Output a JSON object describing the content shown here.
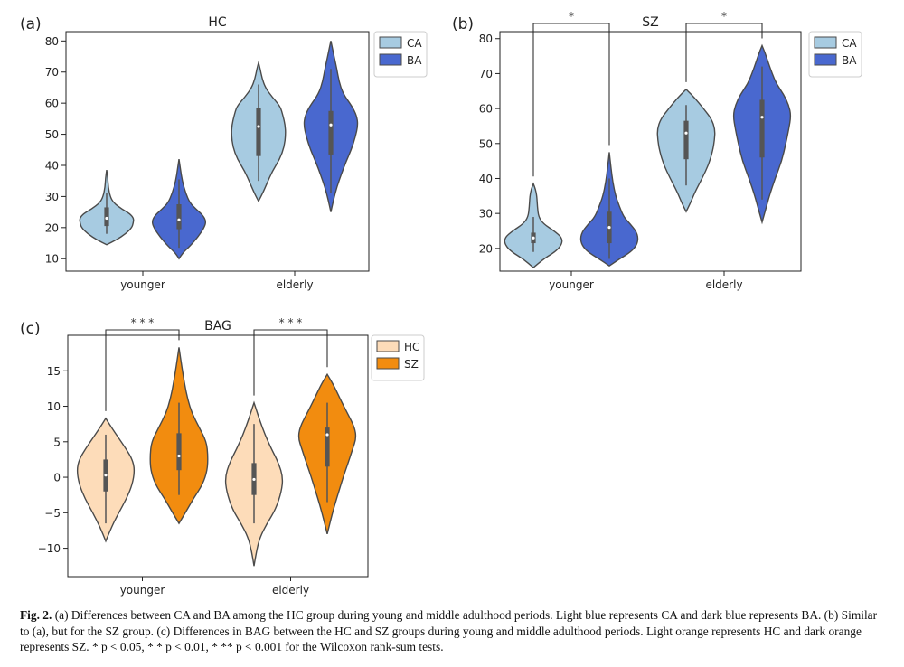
{
  "chart_data": [
    {
      "type": "violin",
      "panel_label": "(a)",
      "title": "HC",
      "categories": [
        "younger",
        "elderly"
      ],
      "ylim": [
        6,
        83
      ],
      "yticks": [
        10,
        20,
        30,
        40,
        50,
        60,
        70,
        80
      ],
      "legend_position": "top-right-outside",
      "series": [
        {
          "name": "CA",
          "color": "#A7CBE1",
          "stats": [
            {
              "min": 14.5,
              "max": 38.5,
              "whisker_low": 18,
              "whisker_high": 31,
              "q1": 20.5,
              "q3": 26.5,
              "median": 23,
              "profile": [
                [
                  14.5,
                  0.0
                ],
                [
                  16,
                  0.35
                ],
                [
                  18,
                  0.7
                ],
                [
                  20,
                  0.93
                ],
                [
                  21.5,
                  0.98
                ],
                [
                  23,
                  1.0
                ],
                [
                  24.5,
                  0.85
                ],
                [
                  26,
                  0.55
                ],
                [
                  28,
                  0.25
                ],
                [
                  30,
                  0.13
                ],
                [
                  33,
                  0.06
                ],
                [
                  36,
                  0.04
                ],
                [
                  38.5,
                  0.0
                ]
              ]
            },
            {
              "min": 28.5,
              "max": 73,
              "whisker_low": 35,
              "whisker_high": 66,
              "q1": 43,
              "q3": 58.5,
              "median": 52.5,
              "profile": [
                [
                  28.5,
                  0.0
                ],
                [
                  31,
                  0.15
                ],
                [
                  34,
                  0.3
                ],
                [
                  38,
                  0.5
                ],
                [
                  42,
                  0.78
                ],
                [
                  46,
                  0.95
                ],
                [
                  50,
                  1.0
                ],
                [
                  53,
                  0.98
                ],
                [
                  56,
                  0.9
                ],
                [
                  59,
                  0.8
                ],
                [
                  62,
                  0.5
                ],
                [
                  65,
                  0.25
                ],
                [
                  68,
                  0.13
                ],
                [
                  71,
                  0.06
                ],
                [
                  73,
                  0.0
                ]
              ]
            }
          ]
        },
        {
          "name": "BA",
          "color": "#4968CF",
          "stats": [
            {
              "min": 10,
              "max": 42,
              "whisker_low": 13.5,
              "whisker_high": 35.5,
              "q1": 19.5,
              "q3": 27.5,
              "median": 22.5,
              "profile": [
                [
                  10,
                  0.0
                ],
                [
                  12,
                  0.15
                ],
                [
                  14,
                  0.4
                ],
                [
                  17,
                  0.7
                ],
                [
                  20,
                  0.93
                ],
                [
                  22,
                  1.0
                ],
                [
                  24,
                  0.88
                ],
                [
                  26,
                  0.62
                ],
                [
                  28,
                  0.4
                ],
                [
                  31,
                  0.25
                ],
                [
                  35,
                  0.12
                ],
                [
                  39,
                  0.05
                ],
                [
                  42,
                  0.0
                ]
              ]
            },
            {
              "min": 25,
              "max": 80,
              "whisker_low": 31,
              "whisker_high": 71,
              "q1": 43.5,
              "q3": 57.5,
              "median": 53,
              "profile": [
                [
                  25,
                  0.0
                ],
                [
                  29,
                  0.1
                ],
                [
                  33,
                  0.22
                ],
                [
                  37,
                  0.38
                ],
                [
                  41,
                  0.55
                ],
                [
                  45,
                  0.75
                ],
                [
                  49,
                  0.9
                ],
                [
                  53,
                  1.0
                ],
                [
                  56,
                  0.95
                ],
                [
                  59,
                  0.78
                ],
                [
                  63,
                  0.45
                ],
                [
                  67,
                  0.3
                ],
                [
                  71,
                  0.22
                ],
                [
                  75,
                  0.12
                ],
                [
                  78,
                  0.05
                ],
                [
                  80,
                  0.0
                ]
              ]
            }
          ]
        }
      ],
      "significance": []
    },
    {
      "type": "violin",
      "panel_label": "(b)",
      "title": "SZ",
      "categories": [
        "younger",
        "elderly"
      ],
      "ylim": [
        13.5,
        82
      ],
      "yticks": [
        20,
        30,
        40,
        50,
        60,
        70,
        80
      ],
      "legend_position": "top-right-inside",
      "series": [
        {
          "name": "CA",
          "color": "#A7CBE1",
          "stats": [
            {
              "min": 14.5,
              "max": 38.5,
              "whisker_low": 19,
              "whisker_high": 29,
              "q1": 21.5,
              "q3": 24.5,
              "median": 23,
              "profile": [
                [
                  14.5,
                  0.0
                ],
                [
                  17,
                  0.35
                ],
                [
                  19,
                  0.75
                ],
                [
                  21,
                  0.98
                ],
                [
                  23,
                  1.0
                ],
                [
                  25,
                  0.72
                ],
                [
                  27,
                  0.35
                ],
                [
                  29,
                  0.18
                ],
                [
                  32,
                  0.14
                ],
                [
                  35,
                  0.12
                ],
                [
                  37,
                  0.07
                ],
                [
                  38.5,
                  0.0
                ]
              ]
            },
            {
              "min": 30.5,
              "max": 65.5,
              "whisker_low": 38,
              "whisker_high": 61,
              "q1": 45.5,
              "q3": 56.5,
              "median": 53,
              "profile": [
                [
                  30.5,
                  0.0
                ],
                [
                  33,
                  0.15
                ],
                [
                  36,
                  0.3
                ],
                [
                  40,
                  0.55
                ],
                [
                  44,
                  0.78
                ],
                [
                  48,
                  0.92
                ],
                [
                  51,
                  0.98
                ],
                [
                  54,
                  1.0
                ],
                [
                  57,
                  0.88
                ],
                [
                  60,
                  0.6
                ],
                [
                  63,
                  0.3
                ],
                [
                  65.5,
                  0.0
                ]
              ]
            }
          ]
        },
        {
          "name": "BA",
          "color": "#4968CF",
          "stats": [
            {
              "min": 15,
              "max": 47.5,
              "whisker_low": 17,
              "whisker_high": 40,
              "q1": 21.5,
              "q3": 30.5,
              "median": 26,
              "profile": [
                [
                  15,
                  0.0
                ],
                [
                  17,
                  0.35
                ],
                [
                  19,
                  0.75
                ],
                [
                  21,
                  0.95
                ],
                [
                  23,
                  1.0
                ],
                [
                  25,
                  0.92
                ],
                [
                  27,
                  0.72
                ],
                [
                  29,
                  0.5
                ],
                [
                  32,
                  0.35
                ],
                [
                  35,
                  0.22
                ],
                [
                  39,
                  0.12
                ],
                [
                  43,
                  0.06
                ],
                [
                  47.5,
                  0.0
                ]
              ]
            },
            {
              "min": 27.5,
              "max": 78,
              "whisker_low": 34,
              "whisker_high": 72,
              "q1": 46,
              "q3": 62.5,
              "median": 57.5,
              "profile": [
                [
                  27.5,
                  0.0
                ],
                [
                  31,
                  0.12
                ],
                [
                  35,
                  0.25
                ],
                [
                  40,
                  0.45
                ],
                [
                  45,
                  0.68
                ],
                [
                  50,
                  0.82
                ],
                [
                  54,
                  0.92
                ],
                [
                  58,
                  1.0
                ],
                [
                  61,
                  0.92
                ],
                [
                  64,
                  0.75
                ],
                [
                  67,
                  0.5
                ],
                [
                  70,
                  0.35
                ],
                [
                  73,
                  0.22
                ],
                [
                  76,
                  0.1
                ],
                [
                  78,
                  0.0
                ]
              ]
            }
          ]
        }
      ],
      "significance": [
        {
          "category": "younger",
          "label": "*"
        },
        {
          "category": "elderly",
          "label": "*"
        }
      ]
    },
    {
      "type": "violin",
      "panel_label": "(c)",
      "title": "BAG",
      "categories": [
        "younger",
        "elderly"
      ],
      "ylim": [
        -14,
        20
      ],
      "yticks": [
        -10,
        -5,
        0,
        5,
        10,
        15
      ],
      "legend_position": "top-right-outside",
      "series": [
        {
          "name": "HC",
          "color": "#FDDCB9",
          "stats": [
            {
              "min": -9,
              "max": 8.3,
              "whisker_low": -6.5,
              "whisker_high": 6,
              "q1": -2,
              "q3": 2.5,
              "median": 0.3,
              "profile": [
                [
                  -9,
                  0.0
                ],
                [
                  -7,
                  0.2
                ],
                [
                  -5,
                  0.45
                ],
                [
                  -3,
                  0.72
                ],
                [
                  -1,
                  0.92
                ],
                [
                  1,
                  1.0
                ],
                [
                  2.5,
                  0.92
                ],
                [
                  4,
                  0.7
                ],
                [
                  5.5,
                  0.45
                ],
                [
                  7,
                  0.2
                ],
                [
                  8.3,
                  0.0
                ]
              ]
            },
            {
              "min": -12.5,
              "max": 10.5,
              "whisker_low": -6.5,
              "whisker_high": 7.5,
              "q1": -2.5,
              "q3": 2,
              "median": -0.3,
              "profile": [
                [
                  -12.5,
                  0.0
                ],
                [
                  -10.5,
                  0.08
                ],
                [
                  -8.5,
                  0.2
                ],
                [
                  -6.5,
                  0.45
                ],
                [
                  -4.5,
                  0.75
                ],
                [
                  -2,
                  0.95
                ],
                [
                  0,
                  1.0
                ],
                [
                  2,
                  0.85
                ],
                [
                  4,
                  0.6
                ],
                [
                  6,
                  0.38
                ],
                [
                  8,
                  0.2
                ],
                [
                  9.5,
                  0.08
                ],
                [
                  10.5,
                  0.0
                ]
              ]
            }
          ]
        },
        {
          "name": "SZ",
          "color": "#F28C0F",
          "stats": [
            {
              "min": -6.5,
              "max": 18.3,
              "whisker_low": -2.5,
              "whisker_high": 10.5,
              "q1": 1,
              "q3": 6.2,
              "median": 3,
              "profile": [
                [
                  -6.5,
                  0.0
                ],
                [
                  -5,
                  0.22
                ],
                [
                  -3,
                  0.5
                ],
                [
                  -1,
                  0.82
                ],
                [
                  1,
                  0.98
                ],
                [
                  3,
                  1.0
                ],
                [
                  5,
                  0.95
                ],
                [
                  7,
                  0.7
                ],
                [
                  9,
                  0.45
                ],
                [
                  11,
                  0.3
                ],
                [
                  13,
                  0.2
                ],
                [
                  15.5,
                  0.1
                ],
                [
                  18.3,
                  0.0
                ]
              ]
            },
            {
              "min": -8,
              "max": 14.5,
              "whisker_low": -3.5,
              "whisker_high": 10.5,
              "q1": 1.5,
              "q3": 7,
              "median": 6,
              "profile": [
                [
                  -8,
                  0.0
                ],
                [
                  -6,
                  0.12
                ],
                [
                  -4,
                  0.25
                ],
                [
                  -2,
                  0.4
                ],
                [
                  0,
                  0.55
                ],
                [
                  2,
                  0.72
                ],
                [
                  4,
                  0.88
                ],
                [
                  5.5,
                  1.0
                ],
                [
                  7,
                  0.95
                ],
                [
                  9,
                  0.7
                ],
                [
                  11,
                  0.45
                ],
                [
                  13,
                  0.22
                ],
                [
                  14.5,
                  0.0
                ]
              ]
            }
          ]
        }
      ],
      "significance": [
        {
          "category": "younger",
          "label": "* * *"
        },
        {
          "category": "elderly",
          "label": "* * *"
        }
      ]
    }
  ],
  "caption": {
    "label": "Fig. 2.",
    "text": "(a) Differences between CA and BA among the HC group during young and middle adulthood periods. Light blue represents CA and dark blue represents BA. (b) Similar to (a), but for the SZ group. (c) Differences in BAG between the HC and SZ groups during young and middle adulthood periods. Light orange represents HC and dark orange represents SZ. * p < 0.05, * * p < 0.01, * ** p < 0.001 for the Wilcoxon rank-sum tests."
  },
  "colors": {
    "axis": "#222222",
    "violin_edge": "#4A4A4A",
    "box": "#555555"
  }
}
